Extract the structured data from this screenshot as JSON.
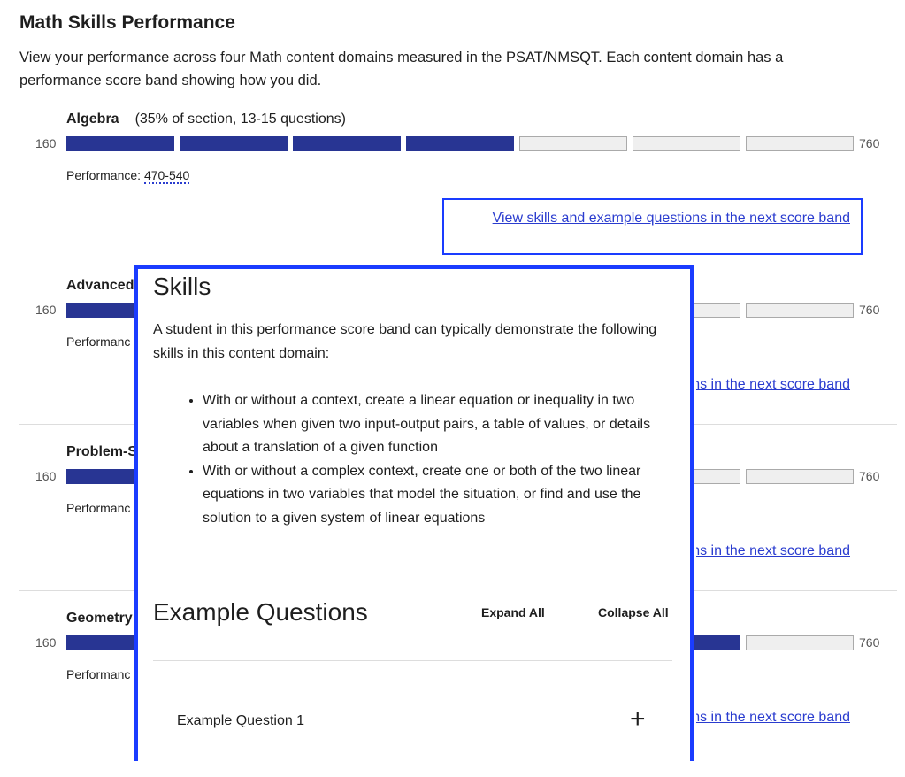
{
  "title": "Math Skills Performance",
  "intro": "View your performance across four Math content domains measured in the PSAT/NMSQT.  Each content domain has a performance score band showing how you did.",
  "scale": {
    "min": "160",
    "max": "760",
    "segments": 7
  },
  "accent": "#283593",
  "link_label": "View skills and example questions in the next score band",
  "domains": [
    {
      "name": "Algebra",
      "meta": "(35% of section, 13-15 questions)",
      "perf_label": "Performance:",
      "perf_value": "470-540",
      "filled": 4
    },
    {
      "name": "Advanced",
      "meta": "",
      "perf_label": "Performanc",
      "perf_value": "",
      "filled": 4
    },
    {
      "name": "Problem-S",
      "meta": "",
      "perf_label": "Performanc",
      "perf_value": "",
      "filled": 4
    },
    {
      "name": "Geometry",
      "meta": "",
      "perf_label": "Performanc",
      "perf_value": "",
      "filled": 6
    }
  ],
  "popup": {
    "skills_title": "Skills",
    "skills_desc": "A student in this performance score band can typically demonstrate the following skills in this content domain:",
    "skills": [
      "With or without a context, create a linear equation or inequality in two variables when given two input-output pairs, a table of values, or details about a translation of a given function",
      "With or without a complex context, create one or both of the two linear equations in two variables that model the situation, or find and use the solution to a given system of linear equations"
    ],
    "examples_title": "Example Questions",
    "expand_all": "Expand All",
    "collapse_all": "Collapse All",
    "questions": [
      "Example Question 1"
    ]
  }
}
